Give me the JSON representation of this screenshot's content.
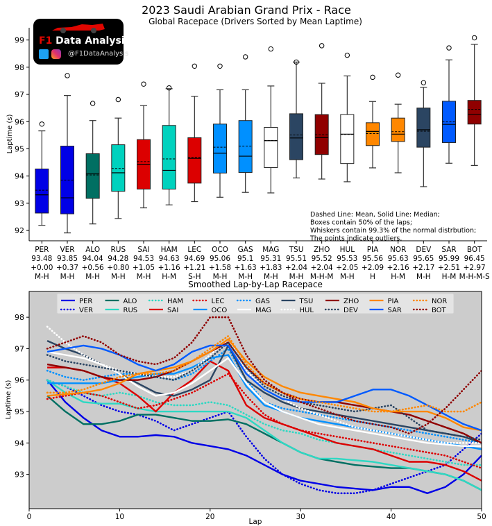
{
  "chart_data": [
    {
      "type": "box",
      "title": "2023 Saudi Arabian Grand Prix - Race",
      "subtitle": "Global Racepace (Drivers Sorted by Mean Laptime)",
      "ylabel": "Laptime (s)",
      "ylim": [
        91.62,
        99.45
      ],
      "yticks": [
        92,
        93,
        94,
        95,
        96,
        97,
        98,
        99
      ],
      "grid": false,
      "annotation": [
        "Dashed Line: Mean, Solid Line: Median;",
        "Boxes contain 50% of the laps;",
        "Whiskers contain 99.3% of the normal distrbution;",
        "The points indicate outliers."
      ],
      "drivers": [
        {
          "driver": "PER",
          "mean": "93.48",
          "delta": "+0.00",
          "compounds": "M-H",
          "color": "#0000e6",
          "low": 92.19,
          "q1": 92.64,
          "median": 93.31,
          "mean_value": 93.48,
          "q3": 94.26,
          "high": 95.66,
          "outliers": [
            95.91
          ]
        },
        {
          "driver": "VER",
          "mean": "93.85",
          "delta": "+0.37",
          "compounds": "M-H",
          "color": "#0000e6",
          "low": 91.91,
          "q1": 92.61,
          "median": 93.2,
          "mean_value": 93.85,
          "q3": 95.1,
          "high": 96.96,
          "outliers": [
            97.69
          ]
        },
        {
          "driver": "ALO",
          "mean": "94.04",
          "delta": "+0.56",
          "compounds": "M-H",
          "color": "#006f62",
          "low": 92.24,
          "q1": 93.18,
          "median": 94.08,
          "mean_value": 94.04,
          "q3": 94.82,
          "high": 96.04,
          "outliers": [
            96.67
          ]
        },
        {
          "driver": "RUS",
          "mean": "94.28",
          "delta": "+0.80",
          "compounds": "M-H",
          "color": "#00d2be",
          "low": 92.44,
          "q1": 93.44,
          "median": 94.12,
          "mean_value": 94.28,
          "q3": 95.15,
          "high": 96.13,
          "outliers": [
            96.81
          ]
        },
        {
          "driver": "SAI",
          "mean": "94.53",
          "delta": "+1.05",
          "compounds": "M-H",
          "color": "#dc0000",
          "low": 92.83,
          "q1": 93.52,
          "median": 94.42,
          "mean_value": 94.53,
          "q3": 95.34,
          "high": 96.59,
          "outliers": [
            97.38
          ]
        },
        {
          "driver": "HAM",
          "mean": "94.63",
          "delta": "+1.16",
          "compounds": "H-M",
          "color": "#00d2be",
          "low": 92.94,
          "q1": 93.52,
          "median": 94.21,
          "mean_value": 94.63,
          "q3": 95.86,
          "high": 97.21,
          "outliers": [
            97.24
          ]
        },
        {
          "driver": "LEC",
          "mean": "94.69",
          "delta": "+1.21",
          "compounds": "S-H",
          "color": "#dc0000",
          "low": 93.06,
          "q1": 93.74,
          "median": 94.65,
          "mean_value": 94.69,
          "q3": 95.41,
          "high": 96.93,
          "outliers": [
            98.04
          ]
        },
        {
          "driver": "OCO",
          "mean": "95.06",
          "delta": "+1.58",
          "compounds": "M-H",
          "color": "#0090ff",
          "low": 93.22,
          "q1": 94.11,
          "median": 94.84,
          "mean_value": 95.06,
          "q3": 95.91,
          "high": 97.17,
          "outliers": [
            98.04
          ]
        },
        {
          "driver": "GAS",
          "mean": "95.1",
          "delta": "+1.63",
          "compounds": "M-H",
          "color": "#0090ff",
          "low": 93.4,
          "q1": 94.13,
          "median": 94.73,
          "mean_value": 95.1,
          "q3": 96.04,
          "high": 97.17,
          "outliers": [
            98.38
          ]
        },
        {
          "driver": "MAG",
          "mean": "95.31",
          "delta": "+1.83",
          "compounds": "M-H",
          "color": "#ffffff",
          "low": 93.38,
          "q1": 94.31,
          "median": 95.3,
          "mean_value": 95.31,
          "q3": 95.79,
          "high": 97.31,
          "outliers": [
            98.67
          ]
        },
        {
          "driver": "TSU",
          "mean": "95.51",
          "delta": "+2.04",
          "compounds": "M-H",
          "color": "#2b4562",
          "low": 93.93,
          "q1": 94.6,
          "median": 95.4,
          "mean_value": 95.51,
          "q3": 96.29,
          "high": 98.19,
          "outliers": [
            98.19
          ]
        },
        {
          "driver": "ZHO",
          "mean": "95.52",
          "delta": "+2.04",
          "compounds": "M-H-M",
          "color": "#900000",
          "low": 93.89,
          "q1": 94.79,
          "median": 95.41,
          "mean_value": 95.52,
          "q3": 96.26,
          "high": 97.41,
          "outliers": [
            98.79
          ]
        },
        {
          "driver": "HUL",
          "mean": "95.53",
          "delta": "+2.05",
          "compounds": "M-H",
          "color": "#ffffff",
          "low": 93.79,
          "q1": 94.46,
          "median": 95.54,
          "mean_value": 95.53,
          "q3": 96.26,
          "high": 97.68,
          "outliers": [
            98.44
          ]
        },
        {
          "driver": "PIA",
          "mean": "95.56",
          "delta": "+2.09",
          "compounds": "H",
          "color": "#ff8700",
          "low": 94.3,
          "q1": 95.12,
          "median": 95.64,
          "mean_value": 95.56,
          "q3": 95.96,
          "high": 96.74,
          "outliers": [
            97.63
          ]
        },
        {
          "driver": "NOR",
          "mean": "95.63",
          "delta": "+2.16",
          "compounds": "H-M",
          "color": "#ff8700",
          "low": 94.12,
          "q1": 95.27,
          "median": 95.54,
          "mean_value": 95.63,
          "q3": 96.13,
          "high": 96.64,
          "outliers": [
            97.71
          ]
        },
        {
          "driver": "DEV",
          "mean": "95.65",
          "delta": "+2.17",
          "compounds": "M-H",
          "color": "#2b4562",
          "low": 93.61,
          "q1": 95.06,
          "median": 95.7,
          "mean_value": 95.65,
          "q3": 96.5,
          "high": 97.26,
          "outliers": [
            97.43
          ]
        },
        {
          "driver": "SAR",
          "mean": "95.99",
          "delta": "+2.51",
          "compounds": "H-M",
          "color": "#005aff",
          "low": 94.47,
          "q1": 95.23,
          "median": 95.9,
          "mean_value": 95.99,
          "q3": 96.75,
          "high": 98.27,
          "outliers": [
            98.71
          ]
        },
        {
          "driver": "BOT",
          "mean": "96.45",
          "delta": "+2.97",
          "compounds": "M-H-M-S",
          "color": "#900000",
          "low": 94.39,
          "q1": 95.91,
          "median": 96.27,
          "mean_value": 96.45,
          "q3": 96.78,
          "high": 98.84,
          "outliers": [
            99.08
          ]
        }
      ]
    },
    {
      "type": "line",
      "title": "Smoothed Lap-by-Lap Racepace",
      "xlabel": "Lap",
      "ylabel": "Laptime (s)",
      "xlim": [
        0,
        50
      ],
      "ylim": [
        91.91,
        98.82
      ],
      "xticks": [
        0,
        10,
        20,
        30,
        40,
        50
      ],
      "yticks": [
        93,
        94,
        95,
        96,
        97,
        98
      ],
      "background": "#cccccc",
      "grid": false,
      "legend_placement": "top-center",
      "x": [
        2,
        4,
        6,
        8,
        10,
        12,
        14,
        16,
        18,
        20,
        22,
        24,
        26,
        28,
        30,
        32,
        34,
        36,
        38,
        40,
        42,
        44,
        46,
        48,
        50
      ],
      "series": [
        {
          "name": "PER",
          "color": "#0000e6",
          "style": "solid",
          "values": [
            96.0,
            95.3,
            94.8,
            94.4,
            94.2,
            94.2,
            94.25,
            94.2,
            94.0,
            93.9,
            93.8,
            93.6,
            93.3,
            93.0,
            92.8,
            92.7,
            92.6,
            92.55,
            92.5,
            92.6,
            92.6,
            92.4,
            92.6,
            93.0,
            93.6
          ]
        },
        {
          "name": "VER",
          "color": "#0000e6",
          "style": "dotted",
          "values": [
            96.0,
            95.8,
            95.5,
            95.2,
            95.0,
            94.9,
            94.7,
            94.4,
            94.6,
            94.8,
            95.0,
            94.2,
            93.5,
            93.0,
            92.7,
            92.5,
            92.4,
            92.4,
            92.5,
            92.7,
            92.9,
            93.1,
            93.3,
            93.8,
            94.3
          ]
        },
        {
          "name": "ALO",
          "color": "#006f62",
          "style": "solid",
          "values": [
            95.5,
            95.0,
            94.6,
            94.6,
            94.7,
            94.9,
            94.9,
            94.8,
            94.7,
            94.7,
            94.75,
            94.6,
            94.3,
            94.0,
            93.7,
            93.5,
            93.4,
            93.3,
            93.25,
            93.2,
            93.2,
            93.1,
            93.0,
            92.8,
            92.5
          ]
        },
        {
          "name": "RUS",
          "color": "#2ed8c3",
          "style": "solid",
          "values": [
            96.0,
            95.6,
            95.3,
            95.25,
            95.25,
            95.1,
            95.0,
            95.0,
            95.0,
            95.0,
            95.0,
            94.8,
            94.4,
            94.0,
            93.7,
            93.5,
            93.5,
            93.45,
            93.4,
            93.3,
            93.2,
            93.1,
            93.0,
            92.8,
            92.5
          ]
        },
        {
          "name": "HAM",
          "color": "#2ed8c3",
          "style": "dotted",
          "values": [
            96.0,
            95.8,
            95.6,
            95.5,
            95.6,
            95.5,
            95.3,
            95.2,
            95.2,
            95.3,
            95.2,
            94.9,
            94.6,
            94.4,
            94.3,
            94.1,
            94.0,
            93.9,
            93.8,
            93.7,
            93.6,
            93.5,
            93.4,
            93.3,
            93.3
          ]
        },
        {
          "name": "SAI",
          "color": "#dc0000",
          "style": "solid",
          "values": [
            96.4,
            96.4,
            96.3,
            96.1,
            95.9,
            95.5,
            95.0,
            95.6,
            96.0,
            96.6,
            96.3,
            95.2,
            94.8,
            94.6,
            94.4,
            94.2,
            94.0,
            93.9,
            93.8,
            93.6,
            93.4,
            93.4,
            93.3,
            93.1,
            92.8
          ]
        },
        {
          "name": "LEC",
          "color": "#dc0000",
          "style": "dotted",
          "values": [
            95.4,
            95.5,
            95.6,
            95.5,
            95.3,
            95.1,
            95.2,
            95.4,
            95.6,
            95.9,
            96.2,
            95.5,
            94.9,
            94.6,
            94.4,
            94.3,
            94.2,
            94.1,
            94.0,
            93.9,
            93.8,
            93.7,
            93.6,
            93.4,
            93.2
          ]
        },
        {
          "name": "OCO",
          "color": "#0090ff",
          "style": "solid",
          "values": [
            95.9,
            95.9,
            95.9,
            95.9,
            96.0,
            96.1,
            96.2,
            96.2,
            96.4,
            96.7,
            96.8,
            95.8,
            95.2,
            95.0,
            94.8,
            94.7,
            94.6,
            94.5,
            94.4,
            94.3,
            94.2,
            94.1,
            94.0,
            93.9,
            93.8
          ]
        },
        {
          "name": "GAS",
          "color": "#0090ff",
          "style": "dotted",
          "values": [
            96.3,
            96.1,
            96.0,
            96.1,
            96.2,
            96.2,
            96.1,
            96.0,
            96.2,
            96.6,
            97.0,
            96.0,
            95.3,
            95.1,
            95.0,
            94.9,
            94.8,
            94.7,
            94.6,
            94.5,
            94.4,
            94.3,
            94.2,
            94.1,
            94.0
          ]
        },
        {
          "name": "TSU",
          "color": "#2b4562",
          "style": "solid",
          "values": [
            97.25,
            97.0,
            96.8,
            96.5,
            96.2,
            95.9,
            95.6,
            95.5,
            95.7,
            96.0,
            97.1,
            96.0,
            95.6,
            95.3,
            95.1,
            95.0,
            94.9,
            94.8,
            94.7,
            94.6,
            94.5,
            94.4,
            94.3,
            94.2,
            94.0
          ]
        },
        {
          "name": "MAG",
          "color": "#ffffff",
          "style": "solid",
          "values": [
            96.9,
            96.8,
            96.7,
            96.5,
            96.2,
            95.8,
            95.5,
            95.6,
            95.9,
            96.3,
            96.7,
            95.9,
            95.3,
            95.0,
            94.8,
            94.6,
            94.5,
            94.4,
            94.3,
            94.2,
            94.1,
            94.0,
            93.95,
            93.9,
            93.9
          ]
        },
        {
          "name": "HUL",
          "color": "#ffffff",
          "style": "dotted",
          "values": [
            97.7,
            97.2,
            96.8,
            96.5,
            96.3,
            96.2,
            96.1,
            96.1,
            96.3,
            96.8,
            97.3,
            96.3,
            95.7,
            95.4,
            95.1,
            94.9,
            94.7,
            94.5,
            94.4,
            94.3,
            94.2,
            94.1,
            94.0,
            94.0,
            94.0
          ]
        },
        {
          "name": "ZHO",
          "color": "#900000",
          "style": "solid",
          "values": [
            96.5,
            96.4,
            96.3,
            96.1,
            96.0,
            96.0,
            96.1,
            96.3,
            96.6,
            96.9,
            97.2,
            96.4,
            95.9,
            95.6,
            95.4,
            95.3,
            95.3,
            95.2,
            95.1,
            95.0,
            94.9,
            94.7,
            94.5,
            94.3,
            94.0
          ]
        },
        {
          "name": "DEV",
          "color": "#2b4562",
          "style": "dotted",
          "values": [
            96.8,
            96.6,
            96.5,
            96.4,
            96.3,
            96.2,
            96.1,
            96.0,
            96.3,
            96.7,
            97.2,
            96.4,
            95.8,
            95.5,
            95.3,
            95.2,
            95.1,
            95.0,
            95.1,
            95.2,
            94.8,
            94.4,
            94.3,
            94.2,
            94.1
          ]
        },
        {
          "name": "PIA",
          "color": "#ff8700",
          "style": "solid",
          "values": [
            95.5,
            95.55,
            95.6,
            95.7,
            95.9,
            96.2,
            96.3,
            96.4,
            96.6,
            96.9,
            97.3,
            96.6,
            96.1,
            95.8,
            95.6,
            95.5,
            95.4,
            95.3,
            95.1,
            95.0,
            95.0,
            95.0,
            94.8,
            94.5,
            94.4
          ]
        },
        {
          "name": "SAR",
          "color": "#005aff",
          "style": "solid",
          "values": [
            96.9,
            97.0,
            97.1,
            97.0,
            96.8,
            96.5,
            96.3,
            96.5,
            96.9,
            97.1,
            97.1,
            96.2,
            95.7,
            95.4,
            95.3,
            95.3,
            95.3,
            95.5,
            95.7,
            95.7,
            95.5,
            95.2,
            94.9,
            94.6,
            94.4
          ]
        },
        {
          "name": "NOR",
          "color": "#ff8700",
          "style": "dotted",
          "values": [
            95.6,
            95.6,
            95.7,
            95.9,
            96.1,
            96.2,
            96.2,
            96.3,
            96.6,
            97.0,
            97.4,
            96.5,
            95.9,
            95.6,
            95.4,
            95.3,
            95.2,
            95.1,
            95.0,
            95.0,
            95.1,
            95.2,
            95.0,
            95.0,
            95.3
          ]
        },
        {
          "name": "BOT",
          "color": "#900000",
          "style": "dotted",
          "values": [
            97.0,
            97.2,
            97.4,
            97.2,
            96.8,
            96.6,
            96.5,
            96.7,
            97.2,
            98.0,
            98.0,
            96.8,
            96.0,
            95.6,
            95.3,
            95.1,
            94.9,
            94.7,
            94.6,
            94.5,
            94.3,
            94.6,
            95.1,
            95.7,
            96.3
          ]
        }
      ],
      "legend_order": [
        "PER",
        "VER",
        "ALO",
        "RUS",
        "HAM",
        "SAI",
        "LEC",
        "OCO",
        "GAS",
        "MAG",
        "TSU",
        "HUL",
        "ZHO",
        "DEV",
        "PIA",
        "SAR",
        "NOR",
        "BOT"
      ]
    }
  ],
  "logo": {
    "brand_prefix": "F1",
    "brand_rest": " Data Analysis",
    "handle": "@F1DataAnalysis",
    "icons": [
      "twitter-icon",
      "instagram-icon"
    ]
  }
}
